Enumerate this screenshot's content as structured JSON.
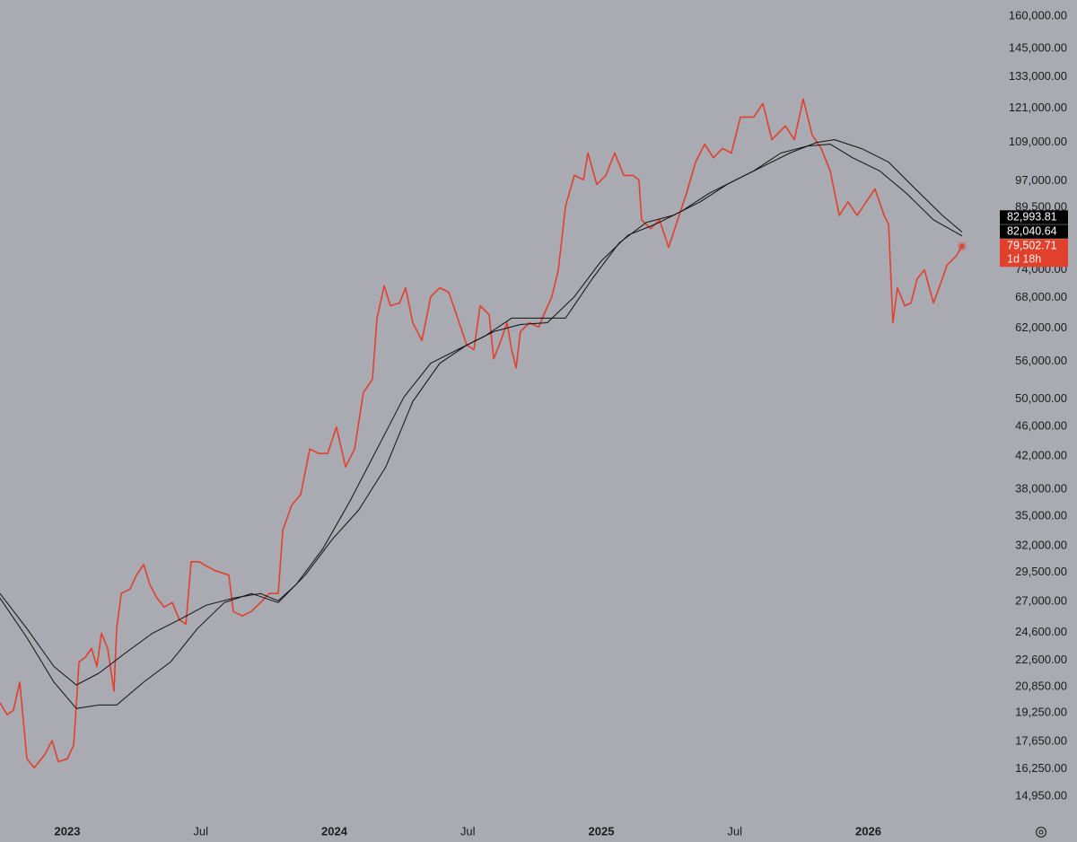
{
  "chart_data": {
    "type": "line",
    "yscale": "log",
    "grid": false,
    "ylim": [
      14000,
      168000
    ],
    "yticks": [
      {
        "value": 160000,
        "label": "160,000.00"
      },
      {
        "value": 145000,
        "label": "145,000.00"
      },
      {
        "value": 133000,
        "label": "133,000.00"
      },
      {
        "value": 121000,
        "label": "121,000.00"
      },
      {
        "value": 109000,
        "label": "109,000.00"
      },
      {
        "value": 97000,
        "label": "97,000.00"
      },
      {
        "value": 89500,
        "label": "89,500.00"
      },
      {
        "value": 74000,
        "label": "74,000.00"
      },
      {
        "value": 68000,
        "label": "68,000.00"
      },
      {
        "value": 62000,
        "label": "62,000.00"
      },
      {
        "value": 56000,
        "label": "56,000.00"
      },
      {
        "value": 50000,
        "label": "50,000.00"
      },
      {
        "value": 46000,
        "label": "46,000.00"
      },
      {
        "value": 42000,
        "label": "42,000.00"
      },
      {
        "value": 38000,
        "label": "38,000.00"
      },
      {
        "value": 35000,
        "label": "35,000.00"
      },
      {
        "value": 32000,
        "label": "32,000.00"
      },
      {
        "value": 29500,
        "label": "29,500.00"
      },
      {
        "value": 27000,
        "label": "27,000.00"
      },
      {
        "value": 24600,
        "label": "24,600.00"
      },
      {
        "value": 22600,
        "label": "22,600.00"
      },
      {
        "value": 20850,
        "label": "20,850.00"
      },
      {
        "value": 19250,
        "label": "19,250.00"
      },
      {
        "value": 17650,
        "label": "17,650.00"
      },
      {
        "value": 16250,
        "label": "16,250.00"
      },
      {
        "value": 14950,
        "label": "14,950.00"
      }
    ],
    "xlim": [
      2022.748,
      2026.479
    ],
    "xticks": [
      2023,
      {
        "value": 2023.5,
        "label": "Jul"
      },
      2024,
      {
        "value": 2024.5,
        "label": "Jul"
      },
      2025,
      {
        "value": 2025.5,
        "label": "Jul"
      },
      2026
    ],
    "series": [
      {
        "color": "#e0402c",
        "last_label": "79,502.71",
        "countdown": "1d 18h",
        "x": [
          2022.748,
          2022.775,
          2022.798,
          2022.822,
          2022.849,
          2022.876,
          2022.916,
          2022.943,
          2022.966,
          2023.0,
          2023.024,
          2023.044,
          2023.067,
          2023.091,
          2023.111,
          2023.128,
          2023.151,
          2023.175,
          2023.185,
          2023.202,
          2023.235,
          2023.259,
          2023.286,
          2023.309,
          2023.336,
          2023.363,
          2023.393,
          2023.42,
          2023.444,
          2023.464,
          2023.494,
          2023.521,
          2023.555,
          2023.605,
          2023.622,
          2023.655,
          2023.689,
          2023.723,
          2023.756,
          2023.79,
          2023.807,
          2023.84,
          2023.874,
          2023.908,
          2023.941,
          2023.975,
          2024.008,
          2024.042,
          2024.076,
          2024.109,
          2024.143,
          2024.16,
          2024.187,
          2024.21,
          2024.244,
          2024.267,
          2024.294,
          2024.328,
          2024.361,
          2024.395,
          2024.429,
          2024.462,
          2024.496,
          2024.523,
          2024.546,
          2024.58,
          2024.597,
          2024.624,
          2024.647,
          2024.664,
          2024.681,
          2024.697,
          2024.731,
          2024.765,
          2024.792,
          2024.815,
          2024.839,
          2024.866,
          2024.899,
          2024.933,
          2024.95,
          2024.983,
          2025.017,
          2025.05,
          2025.084,
          2025.118,
          2025.141,
          2025.151,
          2025.185,
          2025.218,
          2025.252,
          2025.286,
          2025.319,
          2025.353,
          2025.387,
          2025.42,
          2025.454,
          2025.487,
          2025.521,
          2025.571,
          2025.605,
          2025.639,
          2025.689,
          2025.723,
          2025.756,
          2025.79,
          2025.824,
          2025.857,
          2025.891,
          2025.924,
          2025.958,
          2025.992,
          2026.025,
          2026.059,
          2026.076,
          2026.092,
          2026.109,
          2026.136,
          2026.16,
          2026.183,
          2026.21,
          2026.244,
          2026.271,
          2026.294,
          2026.328,
          2026.351
        ],
        "values": [
          19850,
          19150,
          19400,
          21140,
          16750,
          16300,
          16970,
          17700,
          16600,
          16750,
          17460,
          22480,
          22790,
          23420,
          22170,
          24530,
          23420,
          20570,
          24870,
          27670,
          28050,
          29260,
          30230,
          28430,
          27290,
          26560,
          26920,
          25560,
          25210,
          30480,
          30480,
          30070,
          29660,
          29260,
          26200,
          25850,
          26200,
          26920,
          27670,
          27670,
          33520,
          36170,
          37380,
          42930,
          42350,
          42350,
          45880,
          40660,
          42930,
          50960,
          53090,
          63890,
          70470,
          66350,
          66920,
          70070,
          63020,
          59680,
          68190,
          70070,
          69120,
          63890,
          58870,
          58070,
          66350,
          64560,
          56460,
          59680,
          63020,
          58070,
          54940,
          61330,
          63020,
          62170,
          65450,
          68190,
          74000,
          89740,
          98600,
          97270,
          105510,
          95950,
          98600,
          105510,
          98600,
          98600,
          97270,
          86140,
          83860,
          86140,
          79220,
          86140,
          93360,
          102660,
          108410,
          104020,
          107000,
          105510,
          117730,
          117730,
          122660,
          109890,
          114580,
          109890,
          124350,
          111400,
          106940,
          99960,
          87330,
          90980,
          87330,
          90980,
          94640,
          87330,
          84980,
          63020,
          70070,
          66350,
          66920,
          72010,
          74000,
          66920,
          71030,
          75010,
          77090,
          79502.71
        ]
      },
      {
        "color": "#111111",
        "last_label": "82,040.64",
        "x": [
          2022.748,
          2022.849,
          2022.95,
          2023.034,
          2023.118,
          2023.218,
          2023.319,
          2023.42,
          2023.521,
          2023.622,
          2023.723,
          2023.79,
          2023.857,
          2023.958,
          2024.059,
          2024.16,
          2024.261,
          2024.361,
          2024.462,
          2024.563,
          2024.664,
          2024.765,
          2024.866,
          2024.966,
          2025.067,
          2025.168,
          2025.269,
          2025.37,
          2025.471,
          2025.571,
          2025.672,
          2025.773,
          2025.857,
          2025.941,
          2026.042,
          2026.143,
          2026.244,
          2026.351
        ],
        "values": [
          27670,
          24870,
          22170,
          20960,
          21720,
          23100,
          24530,
          25560,
          26710,
          27290,
          27670,
          27070,
          28430,
          31740,
          36660,
          42930,
          50270,
          55700,
          58070,
          60490,
          63890,
          63890,
          63890,
          72010,
          80310,
          85440,
          87330,
          90980,
          95950,
          99960,
          105510,
          107810,
          108410,
          104020,
          99960,
          93360,
          86140,
          82040.64
        ]
      },
      {
        "color": "#111111",
        "last_label": "82,993.81",
        "x": [
          2022.748,
          2022.849,
          2022.95,
          2023.034,
          2023.118,
          2023.185,
          2023.286,
          2023.387,
          2023.487,
          2023.588,
          2023.689,
          2023.79,
          2023.891,
          2023.992,
          2024.092,
          2024.193,
          2024.294,
          2024.395,
          2024.496,
          2024.597,
          2024.697,
          2024.798,
          2024.899,
          2025.0,
          2025.101,
          2025.202,
          2025.303,
          2025.403,
          2025.504,
          2025.605,
          2025.706,
          2025.807,
          2025.874,
          2025.975,
          2026.076,
          2026.176,
          2026.277,
          2026.351
        ],
        "values": [
          27290,
          24200,
          21140,
          19510,
          19720,
          19720,
          21140,
          22480,
          24870,
          26920,
          27670,
          26920,
          29260,
          32620,
          35680,
          40660,
          49590,
          55700,
          58870,
          61330,
          62680,
          63020,
          68190,
          76050,
          82250,
          84980,
          88530,
          93360,
          97270,
          101320,
          105510,
          109000,
          109890,
          106940,
          102660,
          94640,
          87330,
          82993.81
        ]
      }
    ]
  }
}
